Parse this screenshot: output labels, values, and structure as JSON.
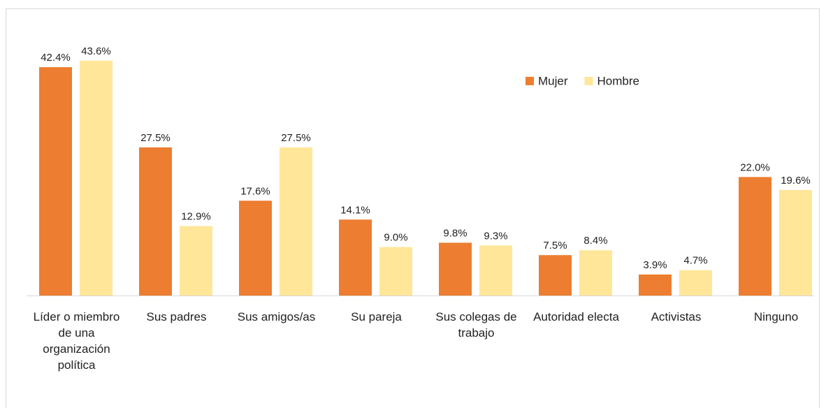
{
  "chart_data": {
    "type": "bar",
    "categories": [
      "Líder o miembro de una organización política",
      "Sus padres",
      "Sus amigos/as",
      "Su pareja",
      "Sus colegas de trabajo",
      "Autoridad electa",
      "Activistas",
      "Ninguno"
    ],
    "series": [
      {
        "name": "Mujer",
        "color": "#ed7d31",
        "values": [
          42.4,
          27.5,
          17.6,
          14.1,
          9.8,
          7.5,
          3.9,
          22.0
        ],
        "value_labels": [
          "42.4%",
          "27.5%",
          "17.6%",
          "14.1%",
          "9.8%",
          "7.5%",
          "3.9%",
          "22.0%"
        ]
      },
      {
        "name": "Hombre",
        "color": "#ffe699",
        "values": [
          43.6,
          12.9,
          27.5,
          9.0,
          9.3,
          8.4,
          4.7,
          19.6
        ],
        "value_labels": [
          "43.6%",
          "12.9%",
          "27.5%",
          "9.0%",
          "9.3%",
          "8.4%",
          "4.7%",
          "19.6%"
        ]
      }
    ],
    "ylim": [
      0,
      50
    ]
  }
}
